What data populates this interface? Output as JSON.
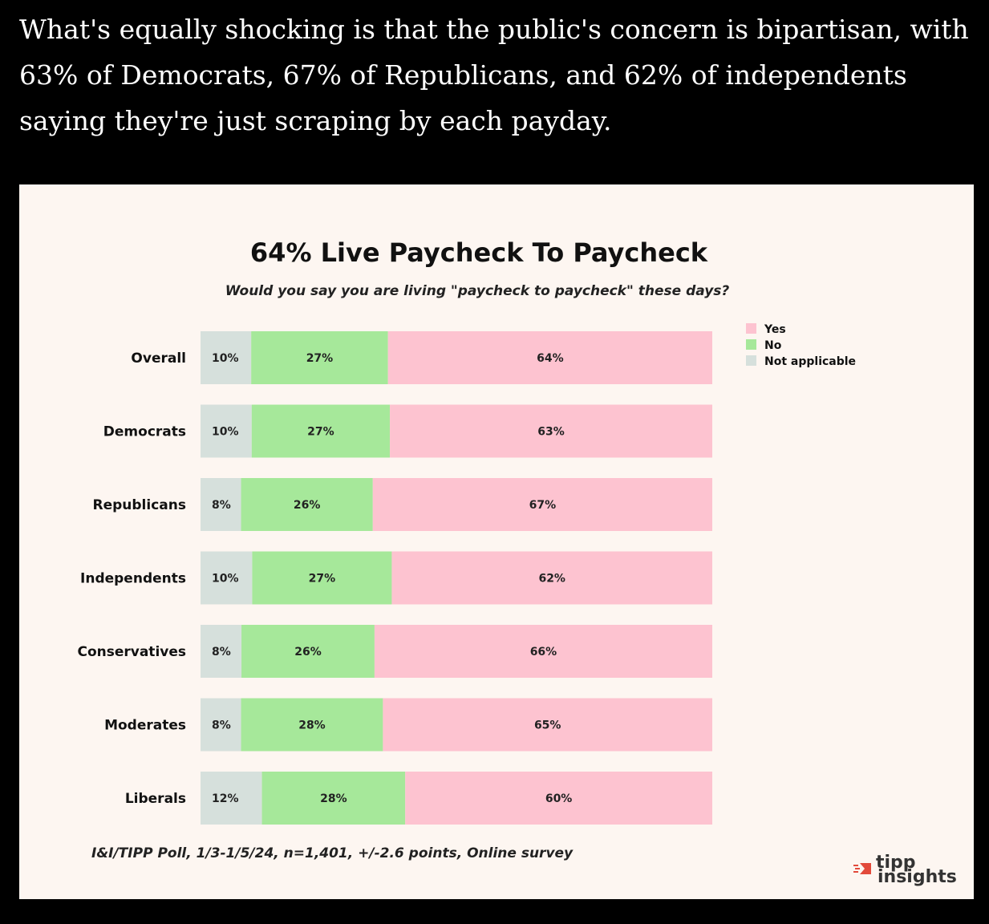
{
  "intro_text": "What's equally shocking is that the public's concern is bipartisan, with 63% of Democrats, 67% of Republicans, and 62% of independents saying they're just scraping by each payday.",
  "chart_data": {
    "type": "bar",
    "orientation": "horizontal",
    "stacked": true,
    "title": "64% Live Paycheck To Paycheck",
    "subtitle": "Would you say you are living \"paycheck to paycheck\" these days?",
    "categories": [
      "Overall",
      "Democrats",
      "Republicans",
      "Independents",
      "Conservatives",
      "Moderates",
      "Liberals"
    ],
    "series": [
      {
        "name": "Not applicable",
        "color": "#d6e0dc",
        "values": [
          10,
          10,
          8,
          10,
          8,
          8,
          12
        ]
      },
      {
        "name": "No",
        "color": "#a6e89a",
        "values": [
          27,
          27,
          26,
          27,
          26,
          28,
          28
        ]
      },
      {
        "name": "Yes",
        "color": "#fdc3d0",
        "values": [
          64,
          63,
          67,
          62,
          66,
          65,
          60
        ]
      }
    ],
    "labels": [
      [
        "10%",
        "27%",
        "64%"
      ],
      [
        "10%",
        "27%",
        "63%"
      ],
      [
        "8%",
        "26%",
        "67%"
      ],
      [
        "10%",
        "27%",
        "62%"
      ],
      [
        "8%",
        "26%",
        "66%"
      ],
      [
        "8%",
        "28%",
        "65%"
      ],
      [
        "12%",
        "28%",
        "60%"
      ]
    ],
    "legend": [
      "Yes",
      "No",
      "Not applicable"
    ],
    "legend_position": "top-right",
    "source": "I&I/TIPP Poll, 1/3-1/5/24, n=1,401, +/-2.6 points, Online survey"
  },
  "logo": {
    "line1": "tipp",
    "line2": "insights",
    "mark_color": "#e24a3b"
  }
}
